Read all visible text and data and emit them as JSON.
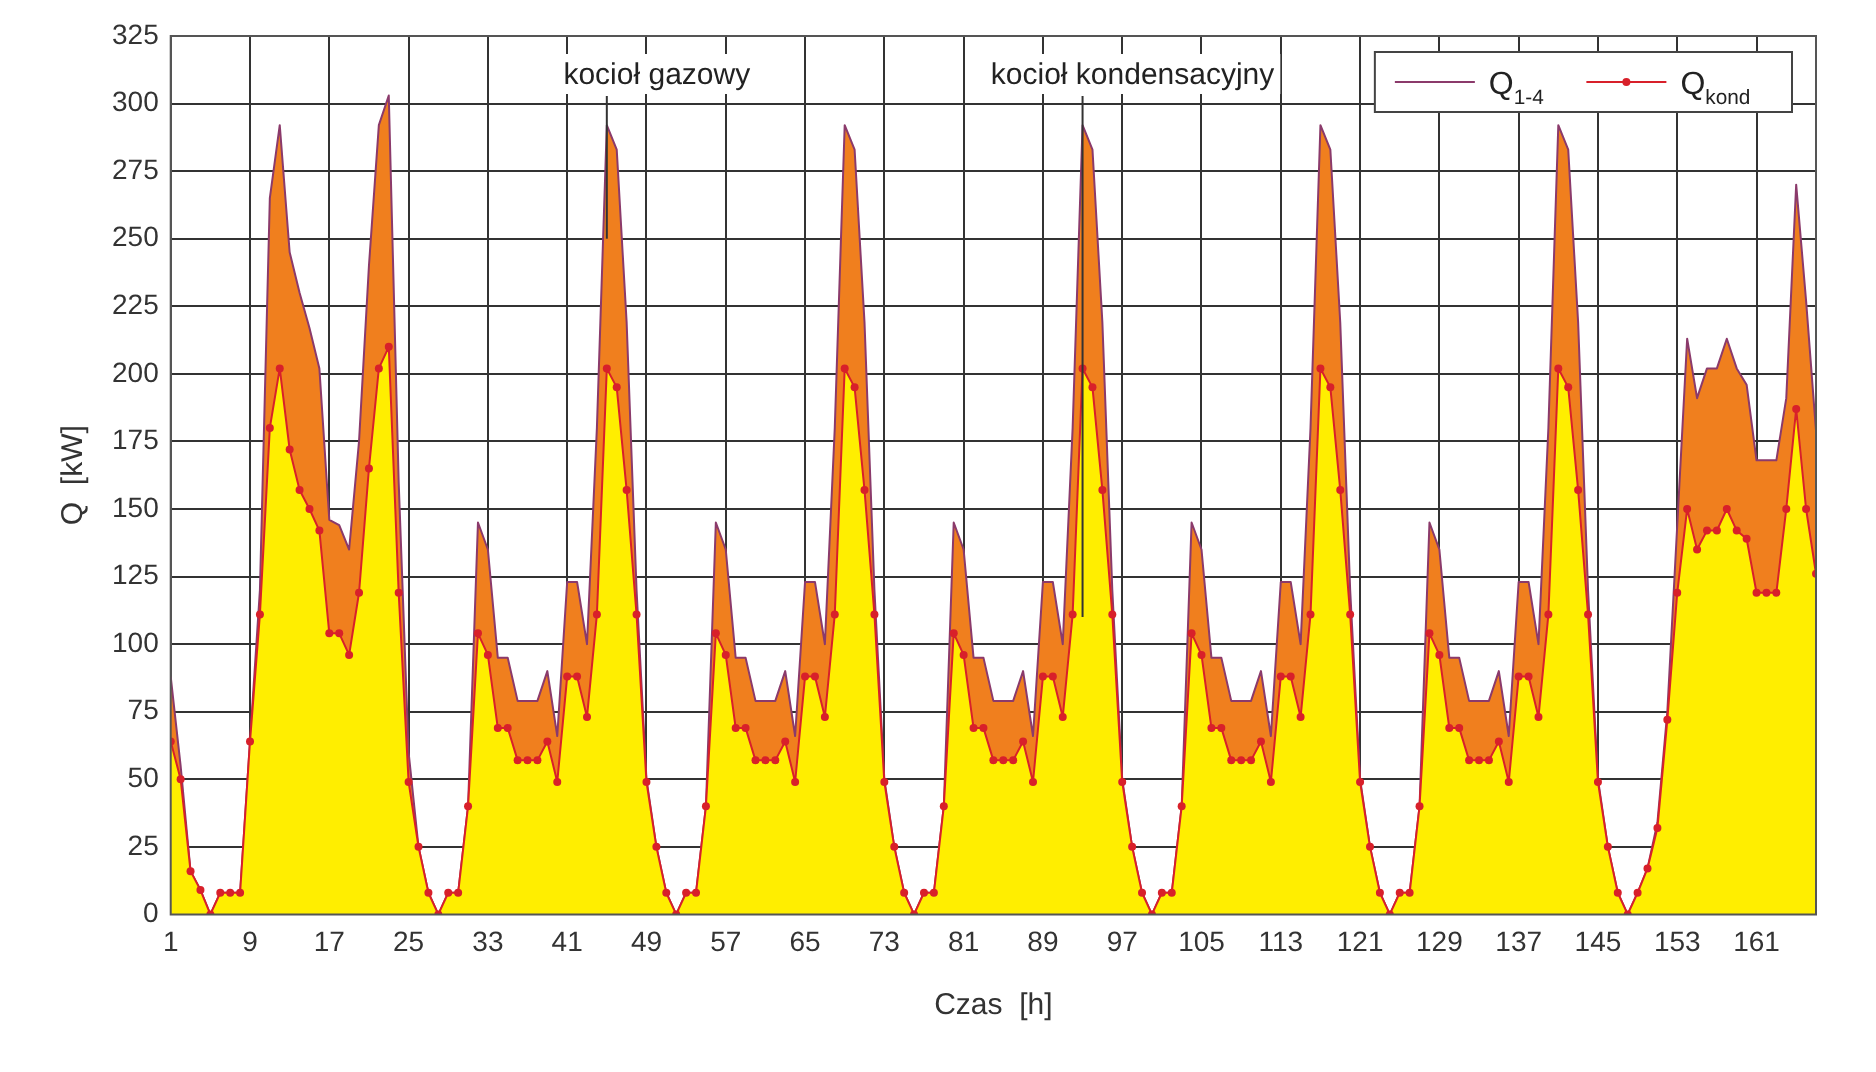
{
  "chart_data": {
    "type": "area",
    "xlabel": "Czas  [h]",
    "ylabel": "Q  [kW]",
    "xlim": [
      1,
      167
    ],
    "xticks": [
      1,
      9,
      17,
      25,
      33,
      41,
      49,
      57,
      65,
      73,
      81,
      89,
      97,
      105,
      113,
      121,
      129,
      137,
      145,
      153,
      161
    ],
    "ylim": [
      0,
      325
    ],
    "yticks": [
      0,
      25,
      50,
      75,
      100,
      125,
      150,
      175,
      200,
      225,
      250,
      275,
      300,
      325
    ],
    "grid": true,
    "legend": "top right",
    "x": [
      1,
      2,
      3,
      4,
      5,
      6,
      7,
      8,
      9,
      10,
      11,
      12,
      13,
      14,
      15,
      16,
      17,
      18,
      19,
      20,
      21,
      22,
      23,
      24,
      25,
      26,
      27,
      28,
      29,
      30,
      31,
      32,
      33,
      34,
      35,
      36,
      37,
      38,
      39,
      40,
      41,
      42,
      43,
      44,
      45,
      46,
      47,
      48,
      49,
      50,
      51,
      52,
      53,
      54,
      55,
      56,
      57,
      58,
      59,
      60,
      61,
      62,
      63,
      64,
      65,
      66,
      67,
      68,
      69,
      70,
      71,
      72,
      73,
      74,
      75,
      76,
      77,
      78,
      79,
      80,
      81,
      82,
      83,
      84,
      85,
      86,
      87,
      88,
      89,
      90,
      91,
      92,
      93,
      94,
      95,
      96,
      97,
      98,
      99,
      100,
      101,
      102,
      103,
      104,
      105,
      106,
      107,
      108,
      109,
      110,
      111,
      112,
      113,
      114,
      115,
      116,
      117,
      118,
      119,
      120,
      121,
      122,
      123,
      124,
      125,
      126,
      127,
      128,
      129,
      130,
      131,
      132,
      133,
      134,
      135,
      136,
      137,
      138,
      139,
      140,
      141,
      142,
      143,
      144,
      145,
      146,
      147,
      148,
      149,
      150,
      151,
      152,
      153,
      154,
      155,
      156,
      157,
      158,
      159,
      160,
      161,
      162,
      163,
      164,
      165,
      166,
      167
    ],
    "series": [
      {
        "name": "Q$_{1-4}$",
        "color": "#f07f1e",
        "marker": "none",
        "values": [
          88,
          55,
          16,
          9,
          0,
          8,
          8,
          8,
          64,
          120,
          265,
          292,
          245,
          230,
          217,
          202,
          146,
          144,
          135,
          175,
          240,
          292,
          303,
          160,
          60,
          25,
          8,
          0,
          8,
          8,
          40,
          145,
          135,
          95,
          95,
          79,
          79,
          79,
          90,
          66,
          123,
          123,
          100,
          180,
          292,
          283,
          219,
          120,
          50,
          25,
          8,
          0,
          8,
          8,
          40,
          145,
          135,
          95,
          95,
          79,
          79,
          79,
          90,
          66,
          123,
          123,
          100,
          180,
          292,
          283,
          219,
          120,
          50,
          25,
          8,
          0,
          8,
          8,
          40,
          145,
          135,
          95,
          95,
          79,
          79,
          79,
          90,
          66,
          123,
          123,
          100,
          180,
          292,
          283,
          219,
          120,
          50,
          25,
          8,
          0,
          8,
          8,
          40,
          145,
          135,
          95,
          95,
          79,
          79,
          79,
          90,
          66,
          123,
          123,
          100,
          180,
          292,
          283,
          219,
          120,
          50,
          25,
          8,
          0,
          8,
          8,
          40,
          145,
          135,
          95,
          95,
          79,
          79,
          79,
          90,
          66,
          123,
          123,
          100,
          180,
          292,
          283,
          219,
          120,
          50,
          25,
          8,
          0,
          8,
          17,
          34,
          75,
          144,
          213,
          191,
          202,
          202,
          213,
          202,
          196,
          168,
          168,
          168,
          191,
          270,
          227,
          179
        ]
      },
      {
        "name": "Q$_{kond}$",
        "color": "#ffee00",
        "marker": "circle",
        "values": [
          64,
          50,
          16,
          9,
          0,
          8,
          8,
          8,
          64,
          111,
          180,
          202,
          172,
          157,
          150,
          142,
          104,
          104,
          96,
          119,
          165,
          202,
          210,
          119,
          49,
          25,
          8,
          0,
          8,
          8,
          40,
          104,
          96,
          69,
          69,
          57,
          57,
          57,
          64,
          49,
          88,
          88,
          73,
          111,
          202,
          195,
          157,
          111,
          49,
          25,
          8,
          0,
          8,
          8,
          40,
          104,
          96,
          69,
          69,
          57,
          57,
          57,
          64,
          49,
          88,
          88,
          73,
          111,
          202,
          195,
          157,
          111,
          49,
          25,
          8,
          0,
          8,
          8,
          40,
          104,
          96,
          69,
          69,
          57,
          57,
          57,
          64,
          49,
          88,
          88,
          73,
          111,
          202,
          195,
          157,
          111,
          49,
          25,
          8,
          0,
          8,
          8,
          40,
          104,
          96,
          69,
          69,
          57,
          57,
          57,
          64,
          49,
          88,
          88,
          73,
          111,
          202,
          195,
          157,
          111,
          49,
          25,
          8,
          0,
          8,
          8,
          40,
          104,
          96,
          69,
          69,
          57,
          57,
          57,
          64,
          49,
          88,
          88,
          73,
          111,
          202,
          195,
          157,
          111,
          49,
          25,
          8,
          0,
          8,
          17,
          32,
          72,
          119,
          150,
          135,
          142,
          142,
          150,
          142,
          139,
          119,
          119,
          119,
          150,
          187,
          150,
          126
        ]
      }
    ],
    "annotations": [
      {
        "text": "kocioł gazowy",
        "x": 45,
        "y": 250
      },
      {
        "text": "kocioł kondensacyjny",
        "x": 93,
        "y": 110
      }
    ]
  }
}
